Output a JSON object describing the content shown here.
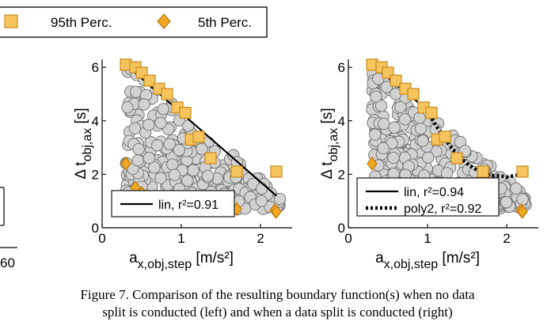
{
  "legend_top": {
    "items": [
      {
        "label": "95th Perc.",
        "marker": "square",
        "color": "#f5c45c",
        "edge": "#c98b1f"
      },
      {
        "label": "5th Perc.",
        "marker": "diamond",
        "color": "#f2a823",
        "edge": "#b9790e"
      }
    ]
  },
  "left_cut": {
    "tick_label": "60"
  },
  "caption": {
    "line1": "Figure 7.   Comparison of the resulting boundary function(s) when no data",
    "line2": "split is conducted (left) and when a data split is conducted (right)"
  },
  "chart_data": [
    {
      "type": "scatter",
      "xlabel": "a_x,obj,step [m/s²]",
      "ylabel": "Δ t_obj,ax [s]",
      "xlim": [
        0,
        2.4
      ],
      "ylim": [
        0,
        6.3
      ],
      "xticks": [
        0,
        1,
        2
      ],
      "yticks": [
        0,
        2,
        4,
        6
      ],
      "grid": false,
      "legend_position": "bottom-left",
      "scatter_color": "#d2d2d2",
      "seed": 7,
      "p95": {
        "x": [
          0.3,
          0.42,
          0.5,
          0.6,
          0.72,
          0.82,
          0.95,
          1.05,
          1.12,
          1.22,
          1.37,
          1.7,
          2.2
        ],
        "y": [
          6.1,
          6.0,
          5.8,
          5.5,
          5.2,
          5.0,
          4.5,
          4.3,
          3.3,
          3.4,
          2.6,
          2.1,
          2.1
        ]
      },
      "p5": {
        "x": [
          0.3,
          0.42,
          0.5,
          1.7,
          2.18,
          2.2
        ],
        "y": [
          2.4,
          1.5,
          1.3,
          0.7,
          0.65,
          0.6
        ]
      },
      "fits": [
        {
          "name": "lin, r²=0.91",
          "style": "solid",
          "x": [
            0.3,
            2.2
          ],
          "y": [
            6.1,
            1.2
          ]
        }
      ]
    },
    {
      "type": "scatter",
      "xlabel": "a_x,obj,step [m/s²]",
      "ylabel": "Δ t_obj,ax [s]",
      "xlim": [
        0,
        2.4
      ],
      "ylim": [
        0,
        6.3
      ],
      "xticks": [
        0,
        1,
        2
      ],
      "yticks": [
        0,
        2,
        4,
        6
      ],
      "grid": false,
      "legend_position": "bottom-left",
      "scatter_color": "#d2d2d2",
      "seed": 19,
      "p95": {
        "x": [
          0.3,
          0.42,
          0.5,
          0.6,
          0.72,
          0.82,
          0.95,
          1.05,
          1.12,
          1.22,
          1.37,
          1.7,
          2.2
        ],
        "y": [
          6.1,
          6.0,
          5.8,
          5.5,
          5.2,
          5.0,
          4.5,
          4.3,
          3.3,
          3.4,
          2.6,
          2.1,
          2.1
        ]
      },
      "p5": {
        "x": [
          0.3,
          1.7,
          2.18,
          2.2
        ],
        "y": [
          2.4,
          0.7,
          0.65,
          0.6
        ]
      },
      "fits": [
        {
          "name": "lin, r²=0.94",
          "style": "solid",
          "x": [
            0.3,
            1.0
          ],
          "y": [
            6.1,
            4.4
          ]
        },
        {
          "name": "poly2, r²=0.92",
          "style": "dotted",
          "x": [
            1.0,
            1.1,
            1.2,
            1.3,
            1.4,
            1.5,
            1.6,
            1.7,
            1.8,
            1.9,
            2.0,
            2.1,
            2.2
          ],
          "y": [
            4.4,
            3.85,
            3.4,
            3.0,
            2.65,
            2.4,
            2.2,
            2.05,
            1.95,
            1.95,
            1.9,
            1.95,
            2.0
          ]
        }
      ]
    }
  ]
}
